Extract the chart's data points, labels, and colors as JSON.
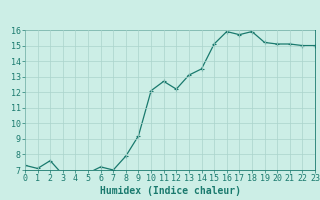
{
  "x": [
    0,
    1,
    2,
    3,
    4,
    5,
    6,
    7,
    8,
    9,
    10,
    11,
    12,
    13,
    14,
    15,
    16,
    17,
    18,
    19,
    20,
    21,
    22,
    23
  ],
  "y": [
    7.3,
    7.1,
    7.6,
    6.7,
    6.7,
    6.8,
    7.2,
    7.0,
    7.9,
    9.2,
    12.1,
    12.7,
    12.2,
    13.1,
    13.5,
    15.1,
    15.9,
    15.7,
    15.9,
    15.2,
    15.1,
    15.1,
    15.0,
    15.0
  ],
  "line_color": "#1a7a6e",
  "marker_color": "#1a7a6e",
  "bg_color": "#cceee6",
  "grid_color": "#aad4cc",
  "xlabel": "Humidex (Indice chaleur)",
  "ylabel": "",
  "ylim": [
    7,
    16
  ],
  "xlim": [
    0,
    23
  ],
  "yticks": [
    7,
    8,
    9,
    10,
    11,
    12,
    13,
    14,
    15,
    16
  ],
  "xticks": [
    0,
    1,
    2,
    3,
    4,
    5,
    6,
    7,
    8,
    9,
    10,
    11,
    12,
    13,
    14,
    15,
    16,
    17,
    18,
    19,
    20,
    21,
    22,
    23
  ],
  "xlabel_fontsize": 7.0,
  "tick_fontsize": 6.0,
  "line_width": 0.9,
  "marker_size": 2.8
}
